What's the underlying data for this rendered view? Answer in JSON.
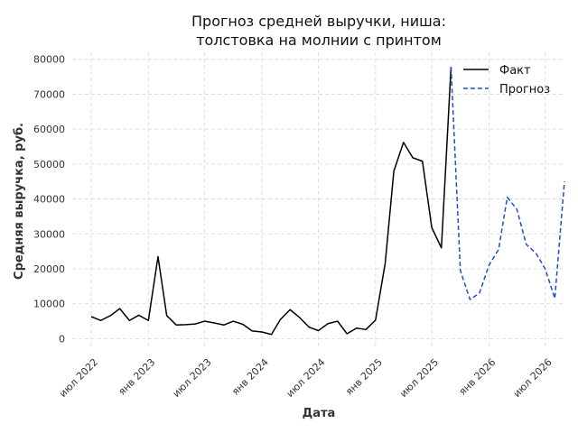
{
  "chart_data": {
    "type": "line",
    "title_lines": [
      "Прогноз средней выручки, ниша:",
      "толстовка на молнии с принтом"
    ],
    "xlabel": "Дата",
    "ylabel": "Средняя выручка, руб.",
    "ylim": [
      -3000,
      82000
    ],
    "xlim": [
      "2022-05-01",
      "2026-09-01"
    ],
    "y_ticks": [
      0,
      10000,
      20000,
      30000,
      40000,
      50000,
      60000,
      70000,
      80000
    ],
    "x_ticks": [
      {
        "date": "2022-07-01",
        "label": "июл 2022"
      },
      {
        "date": "2023-01-01",
        "label": "янв 2023"
      },
      {
        "date": "2023-07-01",
        "label": "июл 2023"
      },
      {
        "date": "2024-01-01",
        "label": "янв 2024"
      },
      {
        "date": "2024-07-01",
        "label": "июл 2024"
      },
      {
        "date": "2025-01-01",
        "label": "янв 2025"
      },
      {
        "date": "2025-07-01",
        "label": "июл 2025"
      },
      {
        "date": "2026-01-01",
        "label": "янв 2026"
      },
      {
        "date": "2026-07-01",
        "label": "июл 2026"
      }
    ],
    "grid": true,
    "legend_position": "top-right",
    "series": [
      {
        "name": "Факт",
        "color": "#000000",
        "style": "solid",
        "points": [
          [
            "2022-07-01",
            6300
          ],
          [
            "2022-08-01",
            5200
          ],
          [
            "2022-09-01",
            6600
          ],
          [
            "2022-10-01",
            8600
          ],
          [
            "2022-11-01",
            5200
          ],
          [
            "2022-12-01",
            6700
          ],
          [
            "2023-01-01",
            5200
          ],
          [
            "2023-02-01",
            23500
          ],
          [
            "2023-03-01",
            6600
          ],
          [
            "2023-04-01",
            3900
          ],
          [
            "2023-05-01",
            4000
          ],
          [
            "2023-06-01",
            4200
          ],
          [
            "2023-07-01",
            5000
          ],
          [
            "2023-08-01",
            4500
          ],
          [
            "2023-09-01",
            3900
          ],
          [
            "2023-10-01",
            5000
          ],
          [
            "2023-11-01",
            4100
          ],
          [
            "2023-12-01",
            2200
          ],
          [
            "2024-01-01",
            1900
          ],
          [
            "2024-02-01",
            1200
          ],
          [
            "2024-03-01",
            5500
          ],
          [
            "2024-04-01",
            8300
          ],
          [
            "2024-05-01",
            6100
          ],
          [
            "2024-06-01",
            3300
          ],
          [
            "2024-07-01",
            2300
          ],
          [
            "2024-08-01",
            4300
          ],
          [
            "2024-09-01",
            5000
          ],
          [
            "2024-10-01",
            1400
          ],
          [
            "2024-11-01",
            3000
          ],
          [
            "2024-12-01",
            2600
          ],
          [
            "2025-01-01",
            5300
          ],
          [
            "2025-02-01",
            21500
          ],
          [
            "2025-03-01",
            48000
          ],
          [
            "2025-04-01",
            56200
          ],
          [
            "2025-05-01",
            51800
          ],
          [
            "2025-06-01",
            50800
          ],
          [
            "2025-07-01",
            31800
          ],
          [
            "2025-08-01",
            26000
          ],
          [
            "2025-09-01",
            77800
          ]
        ]
      },
      {
        "name": "Прогноз",
        "color": "#1f4fc4",
        "style": "dashed",
        "points": [
          [
            "2025-09-01",
            77800
          ],
          [
            "2025-10-01",
            19500
          ],
          [
            "2025-11-01",
            11200
          ],
          [
            "2025-12-01",
            13000
          ],
          [
            "2026-01-01",
            21000
          ],
          [
            "2026-02-01",
            25500
          ],
          [
            "2026-03-01",
            40500
          ],
          [
            "2026-04-01",
            37000
          ],
          [
            "2026-05-01",
            27000
          ],
          [
            "2026-06-01",
            24500
          ],
          [
            "2026-07-01",
            20000
          ],
          [
            "2026-08-01",
            11500
          ],
          [
            "2026-09-01",
            45000
          ]
        ]
      }
    ]
  }
}
